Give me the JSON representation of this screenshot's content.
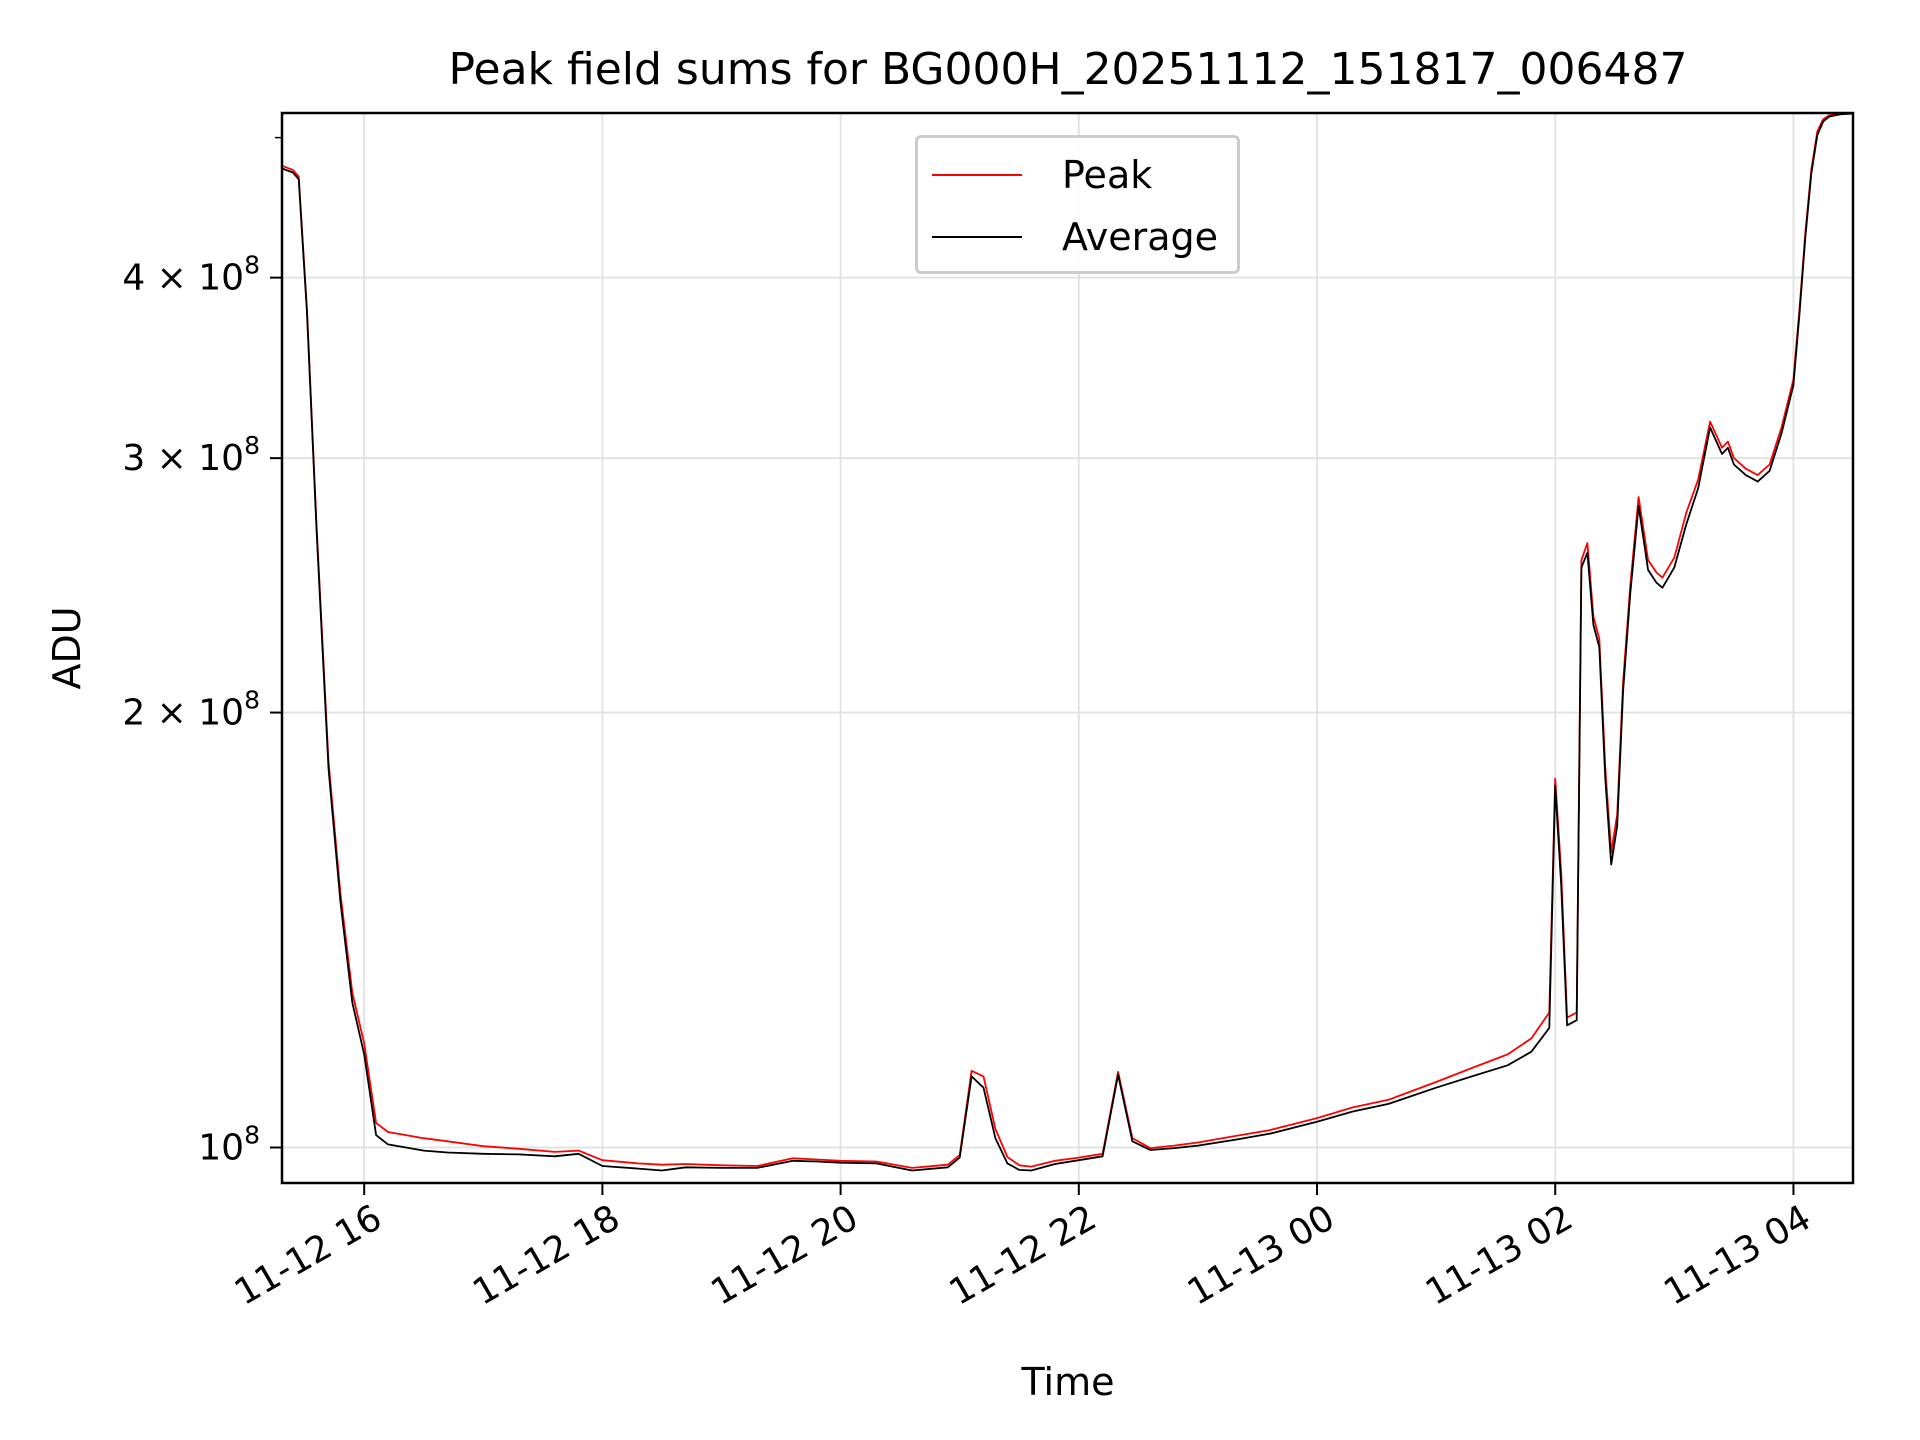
{
  "chart_data": {
    "type": "line",
    "title": "Peak field sums for BG000H_20251112_151817_006487",
    "xlabel": "Time",
    "ylabel": "ADU",
    "yscale": "log",
    "x_unit": "hours since 2025-11-12 00:00",
    "xlim": [
      15.31,
      28.5
    ],
    "ylim": [
      94500000,
      520000000
    ],
    "grid": true,
    "legend_position": "upper center",
    "x_ticks": [
      {
        "value": 16,
        "label": "11-12 16"
      },
      {
        "value": 18,
        "label": "11-12 18"
      },
      {
        "value": 20,
        "label": "11-12 20"
      },
      {
        "value": 22,
        "label": "11-12 22"
      },
      {
        "value": 24,
        "label": "11-13 00"
      },
      {
        "value": 26,
        "label": "11-13 02"
      },
      {
        "value": 28,
        "label": "11-13 04"
      }
    ],
    "y_ticks": [
      {
        "value": 100000000,
        "mantissa": "",
        "exponent": "8",
        "label_base": "10"
      },
      {
        "value": 200000000,
        "mantissa": "2 × ",
        "exponent": "8",
        "label_base": "10"
      },
      {
        "value": 300000000,
        "mantissa": "3 × ",
        "exponent": "8",
        "label_base": "10"
      },
      {
        "value": 400000000,
        "mantissa": "4 × ",
        "exponent": "8",
        "label_base": "10"
      }
    ],
    "series": [
      {
        "name": "Peak",
        "color": "#ff0000",
        "x": [
          15.31,
          15.4,
          15.45,
          15.52,
          15.6,
          15.7,
          15.8,
          15.9,
          16.0,
          16.1,
          16.2,
          16.35,
          16.5,
          16.7,
          17.0,
          17.3,
          17.6,
          17.8,
          18.0,
          18.3,
          18.5,
          18.7,
          19.0,
          19.3,
          19.6,
          19.8,
          20.0,
          20.3,
          20.6,
          20.9,
          21.0,
          21.1,
          21.2,
          21.3,
          21.4,
          21.5,
          21.6,
          21.8,
          22.0,
          22.2,
          22.33,
          22.45,
          22.6,
          22.8,
          23.0,
          23.3,
          23.6,
          24.0,
          24.3,
          24.6,
          25.0,
          25.3,
          25.6,
          25.8,
          25.95,
          26.0,
          26.05,
          26.1,
          26.18,
          26.22,
          26.27,
          26.32,
          26.37,
          26.42,
          26.47,
          26.52,
          26.57,
          26.63,
          26.7,
          26.78,
          26.85,
          26.9,
          27.0,
          27.1,
          27.2,
          27.3,
          27.4,
          27.45,
          27.5,
          27.6,
          27.7,
          27.8,
          27.9,
          28.0,
          28.05,
          28.1,
          28.15,
          28.2,
          28.25,
          28.3,
          28.35,
          28.4,
          28.5
        ],
        "y": [
          478000000,
          475000000,
          470000000,
          380000000,
          270000000,
          185000000,
          150000000,
          128000000,
          118000000,
          104000000,
          102500000,
          102000000,
          101500000,
          101000000,
          100200000,
          99800000,
          99300000,
          99500000,
          98000000,
          97500000,
          97300000,
          97400000,
          97200000,
          97100000,
          98300000,
          98100000,
          97900000,
          97800000,
          96800000,
          97300000,
          98800000,
          113000000,
          112000000,
          103000000,
          98500000,
          97200000,
          97000000,
          97900000,
          98400000,
          99000000,
          112800000,
          101500000,
          99900000,
          100300000,
          100800000,
          101800000,
          102800000,
          104800000,
          106600000,
          107900000,
          111000000,
          113500000,
          116000000,
          119000000,
          124000000,
          180000000,
          155000000,
          123000000,
          124000000,
          255000000,
          262000000,
          233000000,
          225000000,
          183000000,
          160000000,
          170000000,
          210000000,
          245000000,
          282000000,
          255000000,
          250000000,
          248000000,
          256000000,
          275000000,
          290000000,
          318000000,
          305000000,
          308000000,
          300000000,
          295000000,
          292000000,
          297000000,
          315000000,
          340000000,
          380000000,
          430000000,
          475000000,
          505000000,
          515000000,
          518000000,
          519000000,
          520000000,
          520000000
        ]
      },
      {
        "name": "Average",
        "color": "#000000",
        "x": [
          15.31,
          15.4,
          15.45,
          15.52,
          15.6,
          15.7,
          15.8,
          15.9,
          16.0,
          16.1,
          16.2,
          16.35,
          16.5,
          16.7,
          17.0,
          17.3,
          17.6,
          17.8,
          18.0,
          18.3,
          18.5,
          18.7,
          19.0,
          19.3,
          19.6,
          19.8,
          20.0,
          20.3,
          20.6,
          20.9,
          21.0,
          21.1,
          21.2,
          21.3,
          21.4,
          21.5,
          21.6,
          21.8,
          22.0,
          22.2,
          22.33,
          22.45,
          22.6,
          22.8,
          23.0,
          23.3,
          23.6,
          24.0,
          24.3,
          24.6,
          25.0,
          25.3,
          25.6,
          25.8,
          25.95,
          26.0,
          26.05,
          26.1,
          26.18,
          26.22,
          26.27,
          26.32,
          26.37,
          26.42,
          26.47,
          26.52,
          26.57,
          26.63,
          26.7,
          26.78,
          26.85,
          26.9,
          27.0,
          27.1,
          27.2,
          27.3,
          27.4,
          27.45,
          27.5,
          27.6,
          27.7,
          27.8,
          27.9,
          28.0,
          28.05,
          28.1,
          28.15,
          28.2,
          28.25,
          28.3,
          28.35,
          28.4,
          28.5
        ],
        "y": [
          476000000,
          473000000,
          468000000,
          378000000,
          268000000,
          183000000,
          148000000,
          126000000,
          116000000,
          102000000,
          100500000,
          100000000,
          99500000,
          99200000,
          99000000,
          98900000,
          98600000,
          99000000,
          97100000,
          96700000,
          96400000,
          96900000,
          96800000,
          96800000,
          97900000,
          97800000,
          97600000,
          97500000,
          96400000,
          96900000,
          98400000,
          112000000,
          110000000,
          101500000,
          97500000,
          96500000,
          96400000,
          97400000,
          98000000,
          98600000,
          112300000,
          101000000,
          99600000,
          99900000,
          100300000,
          101200000,
          102200000,
          104200000,
          105900000,
          107200000,
          110000000,
          112000000,
          114000000,
          116500000,
          121000000,
          178000000,
          152000000,
          121500000,
          122500000,
          252000000,
          258000000,
          230000000,
          222000000,
          180000000,
          157000000,
          167000000,
          207000000,
          242000000,
          278000000,
          251000000,
          246000000,
          244000000,
          252000000,
          270000000,
          286000000,
          315000000,
          302000000,
          305000000,
          297000000,
          292000000,
          289000000,
          294000000,
          312000000,
          337000000,
          377000000,
          427000000,
          472000000,
          502000000,
          513000000,
          517000000,
          518000000,
          519000000,
          519500000
        ]
      }
    ]
  }
}
